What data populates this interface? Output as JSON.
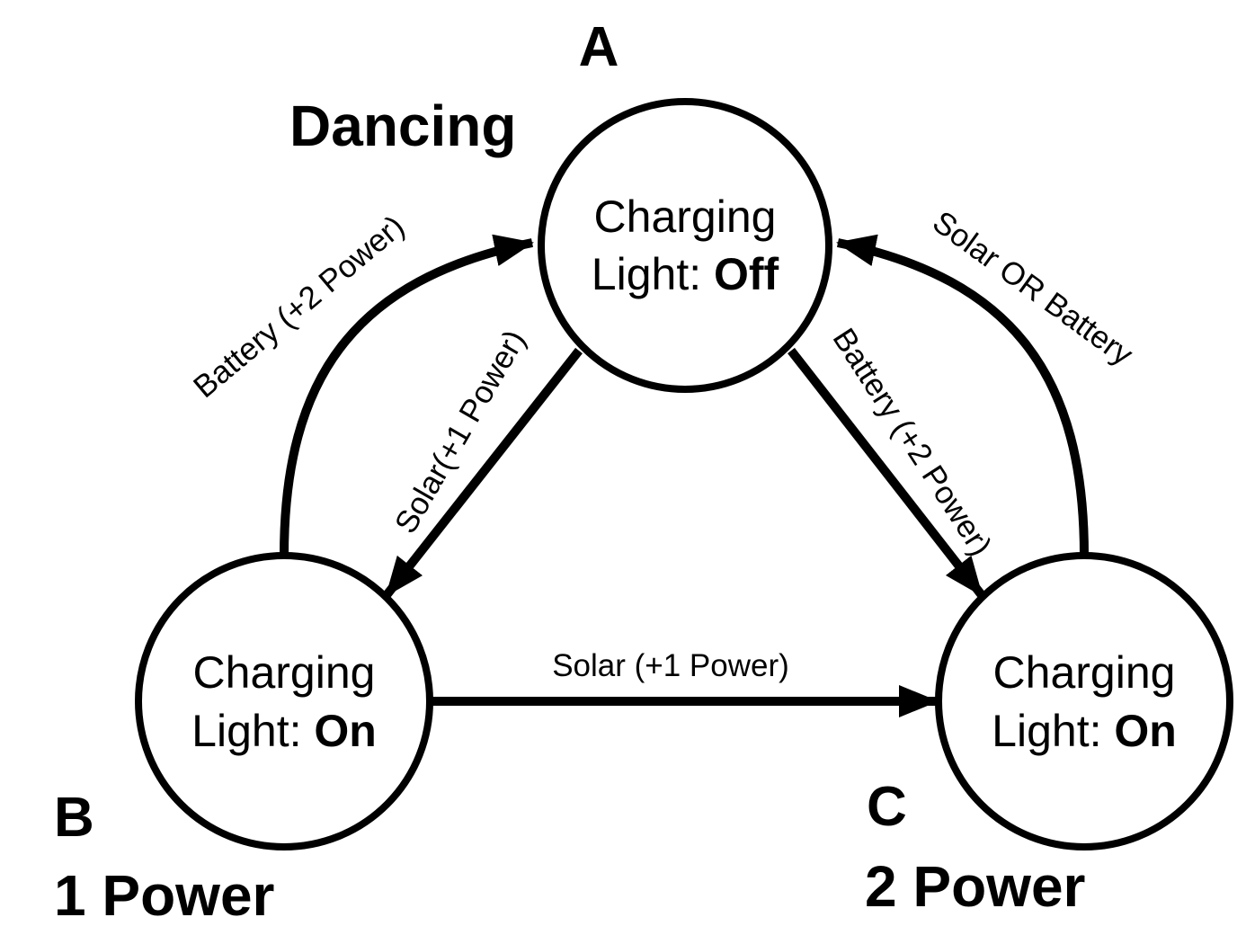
{
  "nodes": {
    "a": {
      "letter": "A",
      "tag": "Dancing",
      "line1": "Charging",
      "line2_prefix": "Light: ",
      "line2_state": "Off"
    },
    "b": {
      "letter": "B",
      "tag": "1 Power",
      "line1": "Charging",
      "line2_prefix": "Light: ",
      "line2_state": "On"
    },
    "c": {
      "letter": "C",
      "tag": "2 Power",
      "line1": "Charging",
      "line2_prefix": "Light: ",
      "line2_state": "On"
    }
  },
  "edges": {
    "b_to_a": "Battery (+2 Power)",
    "a_to_b": "Solar(+1 Power)",
    "a_to_c": "Battery (+2 Power)",
    "c_to_a": "Solar OR Battery",
    "b_to_c": "Solar (+1 Power)"
  },
  "colors": {
    "stroke": "#000000",
    "background": "#ffffff"
  }
}
